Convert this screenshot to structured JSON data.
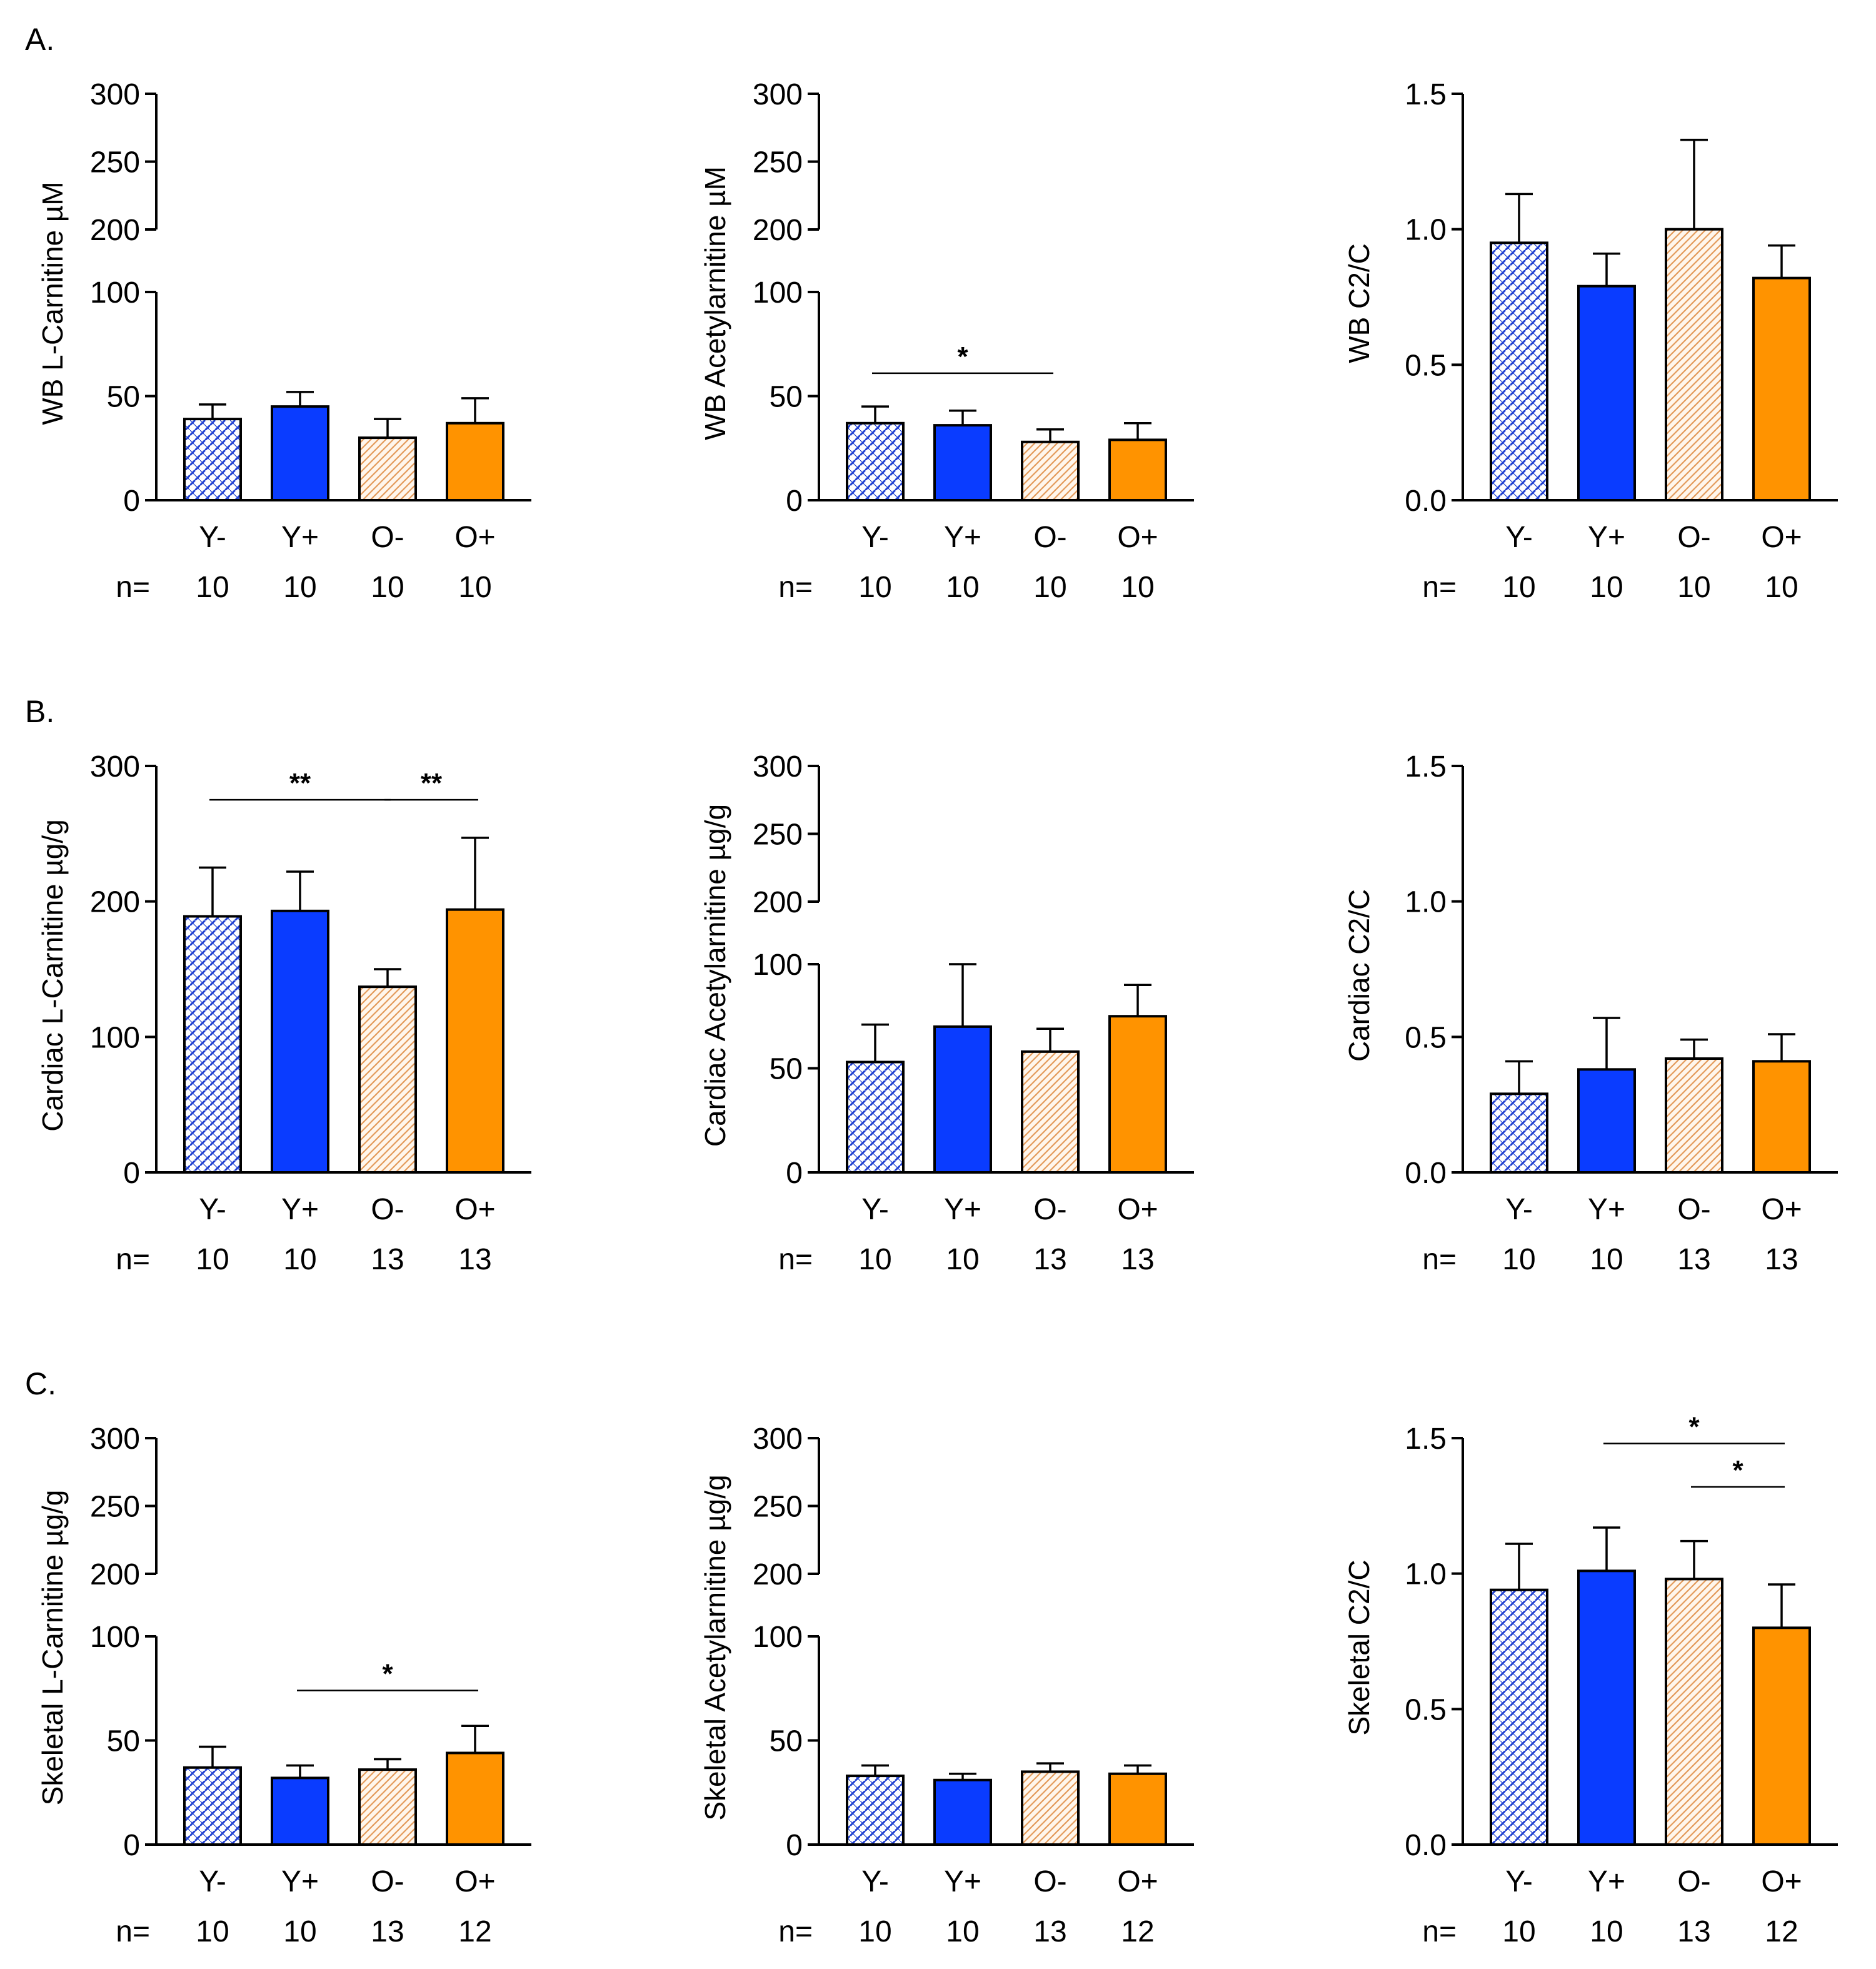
{
  "panel_letters": [
    "A.",
    "B.",
    "C."
  ],
  "colors": {
    "Y-": "#1f3fd0",
    "Y+": "#0a3cff",
    "O-": "#e8a060",
    "O+": "#ff9300"
  },
  "chart_data": [
    {
      "type": "bar",
      "row": 0,
      "col": 0,
      "ylabel": "WB L-Carnitine µM",
      "axis_break": true,
      "yticks": [
        "0",
        "50",
        "100",
        "200",
        "250",
        "300"
      ],
      "categories": [
        "Y-",
        "Y+",
        "O-",
        "O+"
      ],
      "n_prefix": "n=",
      "n": [
        "10",
        "10",
        "10",
        "10"
      ],
      "values": [
        39,
        45,
        30,
        37
      ],
      "errors": [
        7,
        7,
        9,
        12
      ],
      "significance": []
    },
    {
      "type": "bar",
      "row": 0,
      "col": 1,
      "ylabel": "WB Acetylarnitine µM",
      "axis_break": true,
      "yticks": [
        "0",
        "50",
        "100",
        "200",
        "250",
        "300"
      ],
      "categories": [
        "Y-",
        "Y+",
        "O-",
        "O+"
      ],
      "n_prefix": "n=",
      "n": [
        "10",
        "10",
        "10",
        "10"
      ],
      "values": [
        37,
        36,
        28,
        29
      ],
      "errors": [
        8,
        7,
        6,
        8
      ],
      "significance": [
        {
          "from": 0,
          "to": 2,
          "label": "*",
          "y": 61
        }
      ]
    },
    {
      "type": "bar",
      "row": 0,
      "col": 2,
      "ylabel": "WB C2/C",
      "axis_break": false,
      "ylim": [
        0,
        1.5
      ],
      "yticks": [
        "0.0",
        "0.5",
        "1.0",
        "1.5"
      ],
      "categories": [
        "Y-",
        "Y+",
        "O-",
        "O+"
      ],
      "n_prefix": "n=",
      "n": [
        "10",
        "10",
        "10",
        "10"
      ],
      "values": [
        0.95,
        0.79,
        1.0,
        0.82
      ],
      "errors": [
        0.18,
        0.12,
        0.33,
        0.12
      ],
      "significance": []
    },
    {
      "type": "bar",
      "row": 1,
      "col": 0,
      "ylabel": "Cardiac L-Carnitine µg/g",
      "axis_break": false,
      "ylim": [
        0,
        300
      ],
      "yticks": [
        "0",
        "100",
        "200",
        "300"
      ],
      "categories": [
        "Y-",
        "Y+",
        "O-",
        "O+"
      ],
      "n_prefix": "n=",
      "n": [
        "10",
        "10",
        "13",
        "13"
      ],
      "values": [
        189,
        193,
        137,
        194
      ],
      "errors": [
        36,
        29,
        13,
        53
      ],
      "significance": [
        {
          "from": 0,
          "to": 2,
          "label": "**",
          "y": 275
        },
        {
          "from": 2,
          "to": 3,
          "label": "**",
          "y": 275
        }
      ]
    },
    {
      "type": "bar",
      "row": 1,
      "col": 1,
      "ylabel": "Cardiac Acetylarnitine µg/g",
      "axis_break": true,
      "yticks": [
        "0",
        "50",
        "100",
        "200",
        "250",
        "300"
      ],
      "categories": [
        "Y-",
        "Y+",
        "O-",
        "O+"
      ],
      "n_prefix": "n=",
      "n": [
        "10",
        "10",
        "13",
        "13"
      ],
      "values": [
        53,
        70,
        58,
        75
      ],
      "errors": [
        18,
        30,
        11,
        15
      ],
      "significance": []
    },
    {
      "type": "bar",
      "row": 1,
      "col": 2,
      "ylabel": "Cardiac C2/C",
      "axis_break": false,
      "ylim": [
        0,
        1.5
      ],
      "yticks": [
        "0.0",
        "0.5",
        "1.0",
        "1.5"
      ],
      "categories": [
        "Y-",
        "Y+",
        "O-",
        "O+"
      ],
      "n_prefix": "n=",
      "n": [
        "10",
        "10",
        "13",
        "13"
      ],
      "values": [
        0.29,
        0.38,
        0.42,
        0.41
      ],
      "errors": [
        0.12,
        0.19,
        0.07,
        0.1
      ],
      "significance": []
    },
    {
      "type": "bar",
      "row": 2,
      "col": 0,
      "ylabel": "Skeletal L-Carnitine µg/g",
      "axis_break": true,
      "yticks": [
        "0",
        "50",
        "100",
        "200",
        "250",
        "300"
      ],
      "categories": [
        "Y-",
        "Y+",
        "O-",
        "O+"
      ],
      "n_prefix": "n=",
      "n": [
        "10",
        "10",
        "13",
        "12"
      ],
      "values": [
        37,
        32,
        36,
        44
      ],
      "errors": [
        10,
        6,
        5,
        13
      ],
      "significance": [
        {
          "from": 1,
          "to": 3,
          "label": "*",
          "y": 74
        }
      ]
    },
    {
      "type": "bar",
      "row": 2,
      "col": 1,
      "ylabel": "Skeletal Acetylarnitine µg/g",
      "axis_break": true,
      "yticks": [
        "0",
        "50",
        "100",
        "200",
        "250",
        "300"
      ],
      "categories": [
        "Y-",
        "Y+",
        "O-",
        "O+"
      ],
      "n_prefix": "n=",
      "n": [
        "10",
        "10",
        "13",
        "12"
      ],
      "values": [
        33,
        31,
        35,
        34
      ],
      "errors": [
        5,
        3,
        4,
        4
      ],
      "significance": []
    },
    {
      "type": "bar",
      "row": 2,
      "col": 2,
      "ylabel": "Skeletal C2/C",
      "axis_break": false,
      "ylim": [
        0,
        1.5
      ],
      "yticks": [
        "0.0",
        "0.5",
        "1.0",
        "1.5"
      ],
      "categories": [
        "Y-",
        "Y+",
        "O-",
        "O+"
      ],
      "n_prefix": "n=",
      "n": [
        "10",
        "10",
        "13",
        "12"
      ],
      "values": [
        0.94,
        1.01,
        0.98,
        0.8
      ],
      "errors": [
        0.17,
        0.16,
        0.14,
        0.16
      ],
      "significance": [
        {
          "from": 1,
          "to": 3,
          "label": "*",
          "y": 1.48
        },
        {
          "from": 2,
          "to": 3,
          "label": "*",
          "y": 1.32
        }
      ]
    }
  ]
}
